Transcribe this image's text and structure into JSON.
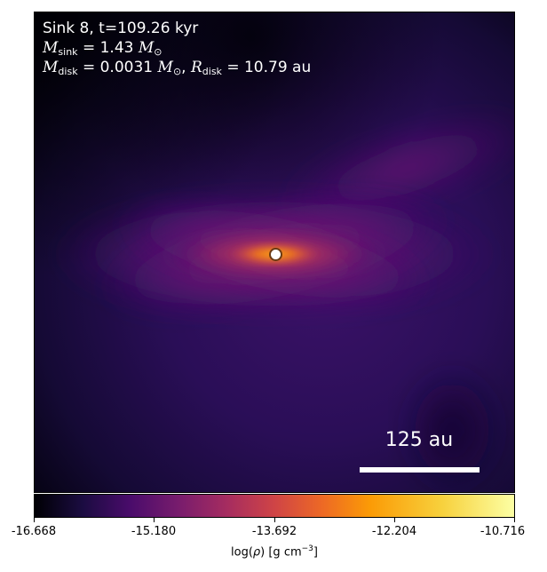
{
  "sink_info": {
    "line1": "Sink 8, t=109.26 kyr",
    "m_sink_symbol": "M",
    "m_sink_sub": "sink",
    "m_sink_value": "= 1.43",
    "m_unit": "M",
    "m_unit_sub": "⊙",
    "m_disk_symbol": "M",
    "m_disk_sub": "disk",
    "m_disk_value": "= 0.0031",
    "r_disk_symbol": "R",
    "r_disk_sub": "disk",
    "r_disk_value": "= 10.79 au"
  },
  "scalebar": {
    "label": "125 au"
  },
  "colorbar": {
    "colormap": "inferno",
    "ticks": [
      "-16.668",
      "-15.180",
      "-13.692",
      "-12.204",
      "-10.716"
    ],
    "label_prefix": "log(",
    "label_rho": "ρ",
    "label_suffix": ") [g cm",
    "label_exp": "−3",
    "label_end": "]"
  }
}
